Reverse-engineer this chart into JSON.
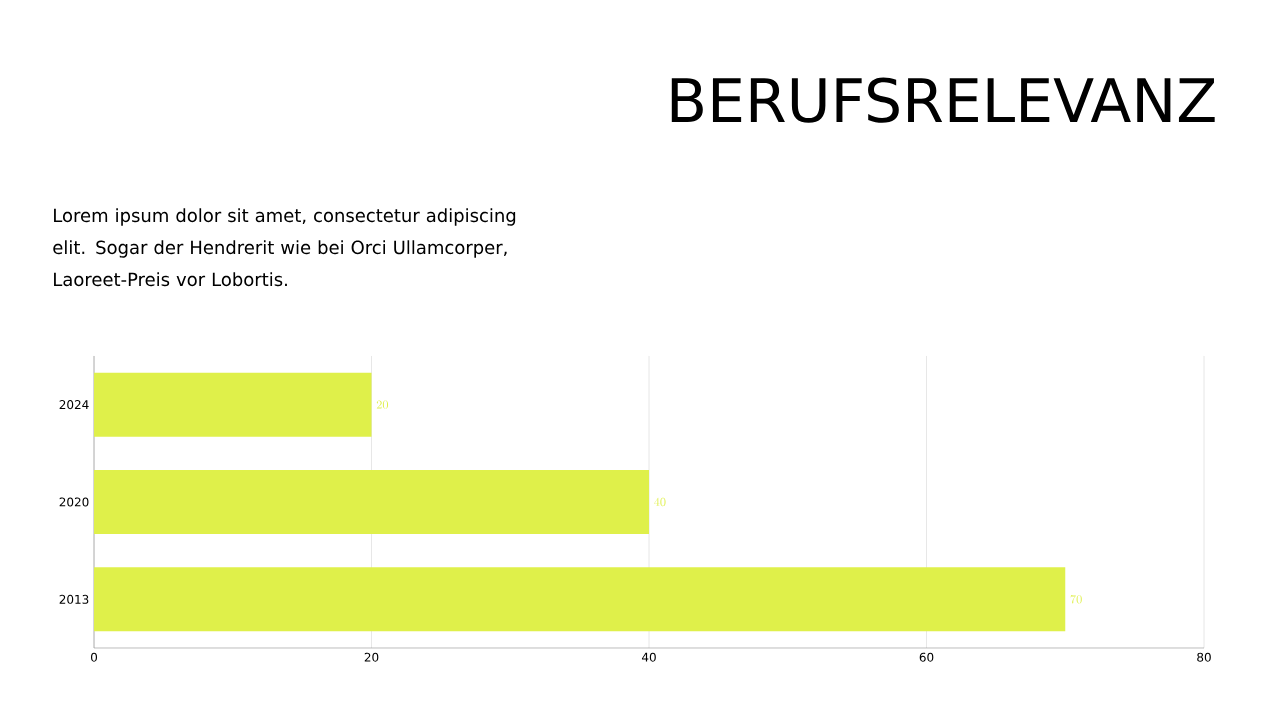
{
  "chart_data": {
    "type": "bar",
    "orientation": "horizontal",
    "title": "BERUFSRELEVANZ",
    "annotations": [
      "Lorem ipsum dolor sit amet, consectetur adipiscing elit. Sogar der Hendrerit wie bei Orci Ullamcorper, Laoreet-Preis vor Lobortis."
    ],
    "categories": [
      "2024",
      "2020",
      "2013"
    ],
    "values": [
      20,
      40,
      70
    ],
    "color": "#dff04a",
    "xlim": [
      0,
      80
    ],
    "xticks": [
      0,
      20,
      40,
      60,
      80
    ],
    "grid": "x",
    "data_labels": true
  }
}
